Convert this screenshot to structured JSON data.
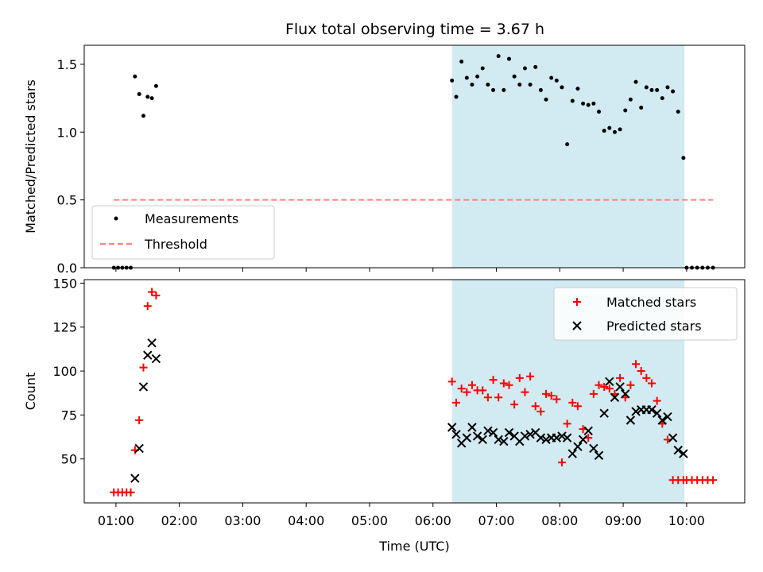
{
  "title": "Flux total observing time = 3.67 h",
  "colors": {
    "shade": "#add8e6",
    "measurement": "#000000",
    "threshold": "#ff7f7f",
    "matched": "#ff0000",
    "predicted": "#000000"
  },
  "chart_data": [
    {
      "type": "scatter",
      "ylabel": "Matched/Predicted stars",
      "xlabel": "",
      "ylim": [
        0,
        1.64
      ],
      "yticks": [
        0.0,
        0.5,
        1.0,
        1.5
      ],
      "ytick_labels": [
        "0.0",
        "0.5",
        "1.0",
        "1.5"
      ],
      "shaded_region": [
        "06:18",
        "09:58"
      ],
      "legend": {
        "placement": "lower left",
        "entries": [
          "Measurements",
          "Threshold"
        ]
      },
      "threshold": {
        "name": "Threshold",
        "value": 0.5,
        "x_range": [
          "00:58",
          "10:25"
        ]
      },
      "series": [
        {
          "name": "Measurements",
          "marker": "dot",
          "x": [
            "00:58",
            "01:02",
            "01:06",
            "01:10",
            "01:14",
            "01:18",
            "01:22",
            "01:26",
            "01:30",
            "01:34",
            "01:38",
            "01:42",
            "06:18",
            "06:22",
            "06:27",
            "06:32",
            "06:37",
            "06:42",
            "06:47",
            "06:52",
            "06:57",
            "07:02",
            "07:07",
            "07:12",
            "07:17",
            "07:22",
            "07:27",
            "07:32",
            "07:37",
            "07:42",
            "07:47",
            "07:52",
            "07:57",
            "08:02",
            "08:07",
            "08:12",
            "08:17",
            "08:22",
            "08:27",
            "08:32",
            "08:37",
            "08:42",
            "08:47",
            "08:52",
            "08:57",
            "09:02",
            "09:07",
            "09:12",
            "09:17",
            "09:22",
            "09:27",
            "09:32",
            "09:37",
            "09:42",
            "09:47",
            "09:52",
            "09:57",
            "10:00",
            "10:05",
            "10:10",
            "10:15",
            "10:20",
            "10:25"
          ],
          "y": [
            0,
            0,
            0,
            0,
            0,
            1.41,
            1.28,
            1.12,
            1.26,
            1.25,
            1.34,
            null,
            1.38,
            1.26,
            1.52,
            1.4,
            1.35,
            1.41,
            1.47,
            1.35,
            1.31,
            1.56,
            1.31,
            1.54,
            1.41,
            1.35,
            1.47,
            1.35,
            1.48,
            1.31,
            1.24,
            1.4,
            1.38,
            1.33,
            0.91,
            1.23,
            1.32,
            1.21,
            1.2,
            1.21,
            1.15,
            1.01,
            1.03,
            1.0,
            1.02,
            1.16,
            1.24,
            1.37,
            1.18,
            1.33,
            1.31,
            1.31,
            1.25,
            1.33,
            1.3,
            1.15,
            0.81,
            0,
            0,
            0,
            0,
            0,
            0
          ]
        }
      ]
    },
    {
      "type": "scatter",
      "ylabel": "Count",
      "xlabel": "Time (UTC)",
      "ylim": [
        25,
        152
      ],
      "yticks": [
        50,
        75,
        100,
        125,
        150
      ],
      "ytick_labels": [
        "50",
        "75",
        "100",
        "125",
        "150"
      ],
      "xlim": [
        "00:30",
        "10:55"
      ],
      "xticks": [
        "01:00",
        "02:00",
        "03:00",
        "04:00",
        "05:00",
        "06:00",
        "07:00",
        "08:00",
        "09:00",
        "10:00"
      ],
      "shaded_region": [
        "06:18",
        "09:58"
      ],
      "legend": {
        "placement": "upper right",
        "entries": [
          "Matched stars",
          "Predicted stars"
        ]
      },
      "series": [
        {
          "name": "Matched stars",
          "marker": "plus",
          "x": [
            "00:58",
            "01:02",
            "01:06",
            "01:10",
            "01:14",
            "01:18",
            "01:22",
            "01:26",
            "01:30",
            "01:34",
            "01:38",
            "01:42",
            "06:18",
            "06:22",
            "06:27",
            "06:32",
            "06:37",
            "06:42",
            "06:47",
            "06:52",
            "06:57",
            "07:02",
            "07:07",
            "07:12",
            "07:17",
            "07:22",
            "07:27",
            "07:32",
            "07:37",
            "07:42",
            "07:47",
            "07:52",
            "07:57",
            "08:02",
            "08:07",
            "08:12",
            "08:17",
            "08:22",
            "08:27",
            "08:32",
            "08:37",
            "08:42",
            "08:47",
            "08:52",
            "08:57",
            "09:02",
            "09:07",
            "09:12",
            "09:17",
            "09:22",
            "09:27",
            "09:32",
            "09:37",
            "09:42",
            "09:47",
            "09:52",
            "09:57",
            "10:00",
            "10:05",
            "10:10",
            "10:15",
            "10:20",
            "10:25"
          ],
          "y": [
            31,
            31,
            31,
            31,
            31,
            55,
            72,
            102,
            137,
            145,
            143,
            null,
            94,
            82,
            90,
            88,
            92,
            89,
            89,
            85,
            95,
            85,
            93,
            92,
            81,
            96,
            88,
            97,
            80,
            77,
            87,
            86,
            84,
            48,
            70,
            82,
            80,
            67,
            62,
            87,
            92,
            91,
            90,
            87,
            96,
            85,
            92,
            104,
            100,
            96,
            93,
            83,
            70,
            61,
            38,
            38,
            38,
            38,
            38,
            38,
            38,
            38,
            38
          ]
        },
        {
          "name": "Predicted stars",
          "marker": "x",
          "x": [
            "01:18",
            "01:22",
            "01:26",
            "01:30",
            "01:34",
            "01:38",
            "06:18",
            "06:22",
            "06:27",
            "06:32",
            "06:37",
            "06:42",
            "06:47",
            "06:52",
            "06:57",
            "07:02",
            "07:07",
            "07:12",
            "07:17",
            "07:22",
            "07:27",
            "07:32",
            "07:37",
            "07:42",
            "07:47",
            "07:52",
            "07:57",
            "08:02",
            "08:07",
            "08:12",
            "08:17",
            "08:22",
            "08:27",
            "08:32",
            "08:37",
            "08:42",
            "08:47",
            "08:52",
            "08:57",
            "09:02",
            "09:07",
            "09:12",
            "09:17",
            "09:22",
            "09:27",
            "09:32",
            "09:37",
            "09:42",
            "09:47",
            "09:52",
            "09:57"
          ],
          "y": [
            39,
            56,
            91,
            109,
            116,
            107,
            68,
            64,
            59,
            62,
            68,
            63,
            61,
            66,
            65,
            61,
            60,
            65,
            63,
            60,
            63,
            64,
            65,
            62,
            61,
            62,
            62,
            63,
            62,
            53,
            57,
            61,
            66,
            56,
            52,
            76,
            94,
            85,
            91,
            87,
            72,
            77,
            78,
            78,
            78,
            76,
            72,
            74,
            62,
            55,
            53
          ]
        }
      ]
    }
  ]
}
